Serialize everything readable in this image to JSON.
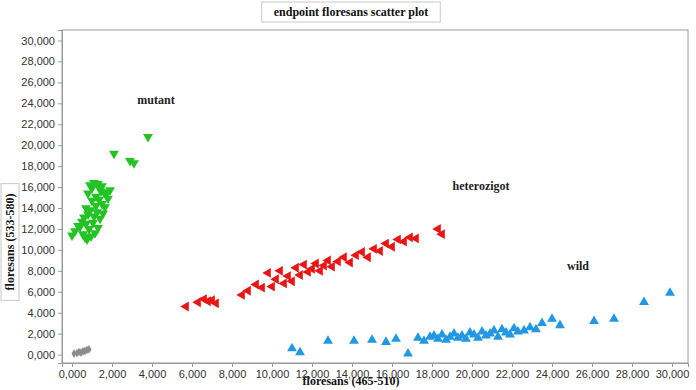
{
  "chart_data": {
    "type": "scatter",
    "title": "endpoint floresans scatter plot",
    "x_label": "floresans (465-510)",
    "y_label": "floresans (533-580)",
    "xlim": [
      -500,
      30800
    ],
    "ylim": [
      -800,
      31000
    ],
    "grid": false,
    "xticks": [
      {
        "value": 0,
        "label": "0,000"
      },
      {
        "value": 2000,
        "label": "2,000"
      },
      {
        "value": 4000,
        "label": "4,000"
      },
      {
        "value": 6000,
        "label": "6,000"
      },
      {
        "value": 8000,
        "label": "8,000"
      },
      {
        "value": 10000,
        "label": "10,000"
      },
      {
        "value": 12000,
        "label": "12,000"
      },
      {
        "value": 14000,
        "label": "14,000"
      },
      {
        "value": 16000,
        "label": "16,000"
      },
      {
        "value": 18000,
        "label": "18,000"
      },
      {
        "value": 20000,
        "label": "20,000"
      },
      {
        "value": 22000,
        "label": "22,000"
      },
      {
        "value": 24000,
        "label": "24,000"
      },
      {
        "value": 26000,
        "label": "26,000"
      },
      {
        "value": 28000,
        "label": "28,000"
      },
      {
        "value": 30000,
        "label": "30,000"
      }
    ],
    "yticks": [
      {
        "value": 0,
        "label": "0,000"
      },
      {
        "value": 2000,
        "label": "2,000"
      },
      {
        "value": 4000,
        "label": "4,000"
      },
      {
        "value": 6000,
        "label": "6,000"
      },
      {
        "value": 8000,
        "label": "8,000"
      },
      {
        "value": 10000,
        "label": "10,000"
      },
      {
        "value": 12000,
        "label": "12,000"
      },
      {
        "value": 14000,
        "label": "14,000"
      },
      {
        "value": 16000,
        "label": "16,000"
      },
      {
        "value": 18000,
        "label": "18,000"
      },
      {
        "value": 20000,
        "label": "20,000"
      },
      {
        "value": 22000,
        "label": "22,000"
      },
      {
        "value": 24000,
        "label": "24,000"
      },
      {
        "value": 26000,
        "label": "26,000"
      },
      {
        "value": 28000,
        "label": "28,000"
      },
      {
        "value": 30000,
        "label": "30,000"
      }
    ],
    "series": [
      {
        "name": "mutant",
        "color": "#22c322",
        "marker": "triangle-down",
        "x": [
          0,
          150,
          300,
          400,
          500,
          550,
          600,
          650,
          700,
          700,
          750,
          800,
          800,
          850,
          900,
          900,
          950,
          1000,
          1000,
          1050,
          1100,
          1100,
          1150,
          1200,
          1200,
          1250,
          1300,
          1300,
          1350,
          1400,
          1400,
          1450,
          1500,
          1500,
          1550,
          1600,
          1650,
          1700,
          1800,
          1900,
          2100,
          2900,
          3100,
          3800
        ],
        "values": [
          11400,
          11800,
          12300,
          12200,
          12700,
          11500,
          13100,
          11200,
          12500,
          14000,
          11000,
          13400,
          15400,
          12000,
          13800,
          16200,
          11300,
          14700,
          15900,
          12600,
          13200,
          16400,
          11600,
          14200,
          15100,
          13600,
          16300,
          12100,
          14800,
          13000,
          15800,
          15600,
          14400,
          16100,
          13500,
          15500,
          14100,
          15300,
          14900,
          15700,
          19200,
          18500,
          18300,
          20800
        ]
      },
      {
        "name": "heterozigot",
        "color": "#ea1616",
        "marker": "triangle-left",
        "x": [
          5700,
          6300,
          6600,
          6800,
          7000,
          7200,
          8500,
          8800,
          9200,
          9500,
          9800,
          10000,
          10200,
          10400,
          10600,
          10800,
          11000,
          11200,
          11400,
          11600,
          11800,
          12000,
          12200,
          12400,
          12600,
          12800,
          13000,
          13300,
          13600,
          13900,
          14200,
          14500,
          14800,
          15100,
          15400,
          15700,
          16000,
          16300,
          16600,
          16900,
          17200,
          18300,
          18500
        ],
        "values": [
          4600,
          5000,
          5300,
          5100,
          5200,
          4900,
          5700,
          6100,
          6700,
          6400,
          7800,
          6500,
          7200,
          8000,
          6800,
          7500,
          7000,
          8300,
          7600,
          8600,
          7900,
          8200,
          8700,
          8000,
          8500,
          9000,
          8400,
          8900,
          9300,
          8800,
          9500,
          9800,
          9300,
          10100,
          9900,
          10600,
          10300,
          11000,
          10800,
          11200,
          11100,
          12000,
          11500
        ]
      },
      {
        "name": "wild",
        "color": "#2298e4",
        "marker": "triangle-up",
        "x": [
          11000,
          11400,
          12800,
          14100,
          15000,
          15700,
          16200,
          16800,
          17300,
          17600,
          17900,
          18100,
          18300,
          18500,
          18700,
          18900,
          19100,
          19300,
          19500,
          19700,
          19900,
          20100,
          20300,
          20500,
          20700,
          20900,
          21100,
          21300,
          21500,
          21700,
          21900,
          22100,
          22300,
          22600,
          22900,
          23200,
          23500,
          24000,
          24400,
          26100,
          27100,
          28600,
          29900
        ],
        "values": [
          600,
          200,
          1300,
          1300,
          1400,
          1200,
          1500,
          100,
          1600,
          1300,
          1700,
          1800,
          1500,
          1900,
          1400,
          1700,
          2000,
          1600,
          1800,
          1500,
          2100,
          1900,
          1600,
          2200,
          1800,
          2000,
          2300,
          1700,
          2400,
          2100,
          1900,
          2500,
          2200,
          2300,
          2600,
          2400,
          3000,
          3400,
          2800,
          3200,
          3400,
          5000,
          5900
        ]
      },
      {
        "color": "#8c8c8c",
        "marker": "diamond",
        "x": [
          100,
          250,
          350,
          450,
          550,
          650,
          750,
          850
        ],
        "values": [
          100,
          150,
          250,
          200,
          300,
          350,
          450,
          500
        ]
      }
    ]
  }
}
